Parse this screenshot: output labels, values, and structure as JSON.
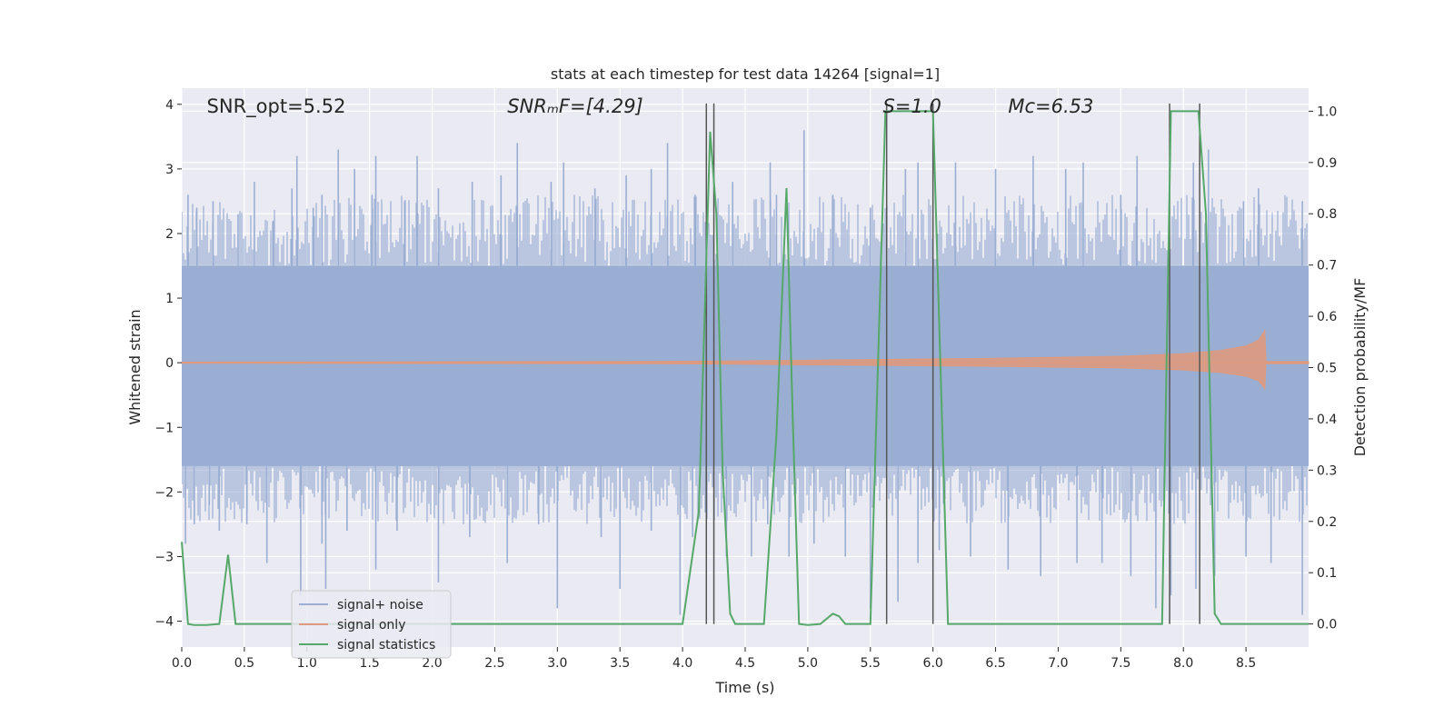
{
  "chart_data": {
    "type": "line",
    "title": "stats at each timestep for test data 14264 [signal=1]",
    "xlabel": "Time (s)",
    "ylabel": "Whitened strain",
    "y2label": "Detection probability/MF",
    "xlim": [
      0,
      9.0
    ],
    "ylim": [
      -4.4,
      4.25
    ],
    "y2lim": [
      -0.045,
      1.045
    ],
    "xticks": [
      0.0,
      0.5,
      1.0,
      1.5,
      2.0,
      2.5,
      3.0,
      3.5,
      4.0,
      4.5,
      5.0,
      5.5,
      6.0,
      6.5,
      7.0,
      7.5,
      8.0,
      8.5
    ],
    "xtick_labels": [
      "0.0",
      "0.5",
      "1.0",
      "1.5",
      "2.0",
      "2.5",
      "3.0",
      "3.5",
      "4.0",
      "4.5",
      "5.0",
      "5.5",
      "6.0",
      "6.5",
      "7.0",
      "7.5",
      "8.0",
      "8.5"
    ],
    "yticks": [
      -4,
      -3,
      -2,
      -1,
      0,
      1,
      2,
      3,
      4
    ],
    "ytick_labels": [
      "−4",
      "−3",
      "−2",
      "−1",
      "0",
      "1",
      "2",
      "3",
      "4"
    ],
    "y2ticks": [
      0.0,
      0.1,
      0.2,
      0.3,
      0.4,
      0.5,
      0.6,
      0.7,
      0.8,
      0.9,
      1.0
    ],
    "y2tick_labels": [
      "0.0",
      "0.1",
      "0.2",
      "0.3",
      "0.4",
      "0.5",
      "0.6",
      "0.7",
      "0.8",
      "0.9",
      "1.0"
    ],
    "grid": true,
    "legend_position": "lower-left",
    "annotations": [
      {
        "label": "SNR_opt=5.52",
        "x": 0.2
      },
      {
        "label": "SNRₘF=[4.29]",
        "x": 2.6
      },
      {
        "label": "S=1.0",
        "x": 5.6
      },
      {
        "label": "Mᴄ=6.53",
        "x": 6.6
      }
    ],
    "series": [
      {
        "name": "signal+ noise",
        "color": "#9aaed3",
        "kind": "noise",
        "envelope": {
          "low": -1.6,
          "high": 1.5
        },
        "spikes_up": [
          [
            0.05,
            2.6
          ],
          [
            0.12,
            2.4
          ],
          [
            0.25,
            2.5
          ],
          [
            0.45,
            2.3
          ],
          [
            0.58,
            2.8
          ],
          [
            0.73,
            2.2
          ],
          [
            0.88,
            2.7
          ],
          [
            0.92,
            3.2
          ],
          [
            1.05,
            2.4
          ],
          [
            1.12,
            2.6
          ],
          [
            1.25,
            3.3
          ],
          [
            1.38,
            3.0
          ],
          [
            1.52,
            2.6
          ],
          [
            1.55,
            3.2
          ],
          [
            1.78,
            2.5
          ],
          [
            1.88,
            3.2
          ],
          [
            2.05,
            2.7
          ],
          [
            2.32,
            2.8
          ],
          [
            2.55,
            2.9
          ],
          [
            2.68,
            3.4
          ],
          [
            2.95,
            2.8
          ],
          [
            3.05,
            3.1
          ],
          [
            3.3,
            2.7
          ],
          [
            3.55,
            2.9
          ],
          [
            3.75,
            3.0
          ],
          [
            3.88,
            3.4
          ],
          [
            4.1,
            2.6
          ],
          [
            4.4,
            2.8
          ],
          [
            4.7,
            3.1
          ],
          [
            4.75,
            2.6
          ],
          [
            4.97,
            3.6
          ],
          [
            5.2,
            2.6
          ],
          [
            5.5,
            2.4
          ],
          [
            5.78,
            3.0
          ],
          [
            5.88,
            3.1
          ],
          [
            6.18,
            3.1
          ],
          [
            6.5,
            3.0
          ],
          [
            6.8,
            3.2
          ],
          [
            7.06,
            3.0
          ],
          [
            7.2,
            3.1
          ],
          [
            7.5,
            2.6
          ],
          [
            7.63,
            3.2
          ],
          [
            8.08,
            3.1
          ],
          [
            8.2,
            3.3
          ],
          [
            8.48,
            2.5
          ],
          [
            8.6,
            2.7
          ],
          [
            8.95,
            2.5
          ]
        ],
        "spikes_down": [
          [
            0.03,
            -2.8
          ],
          [
            0.1,
            -2.5
          ],
          [
            0.22,
            -2.2
          ],
          [
            0.3,
            -2.6
          ],
          [
            0.52,
            -2.5
          ],
          [
            0.68,
            -3.1
          ],
          [
            0.95,
            -3.6
          ],
          [
            1.12,
            -2.8
          ],
          [
            1.15,
            -3.5
          ],
          [
            1.32,
            -2.6
          ],
          [
            1.55,
            -3.2
          ],
          [
            1.72,
            -2.6
          ],
          [
            2.05,
            -3.4
          ],
          [
            2.3,
            -2.7
          ],
          [
            2.6,
            -3.1
          ],
          [
            2.85,
            -2.5
          ],
          [
            3.0,
            -3.8
          ],
          [
            3.35,
            -2.7
          ],
          [
            3.5,
            -3.5
          ],
          [
            3.75,
            -2.6
          ],
          [
            3.98,
            -3.9
          ],
          [
            4.08,
            -2.7
          ],
          [
            4.35,
            -3.0
          ],
          [
            4.55,
            -3.0
          ],
          [
            4.68,
            -2.5
          ],
          [
            4.85,
            -3.0
          ],
          [
            5.05,
            -2.8
          ],
          [
            5.3,
            -3.0
          ],
          [
            5.5,
            -3.8
          ],
          [
            5.72,
            -3.7
          ],
          [
            5.88,
            -3.1
          ],
          [
            6.05,
            -2.9
          ],
          [
            6.3,
            -3.0
          ],
          [
            6.6,
            -3.2
          ],
          [
            6.86,
            -3.3
          ],
          [
            7.15,
            -3.1
          ],
          [
            7.35,
            -3.1
          ],
          [
            7.58,
            -3.3
          ],
          [
            7.78,
            -3.8
          ],
          [
            7.9,
            -3.6
          ],
          [
            8.1,
            -3.5
          ],
          [
            8.25,
            -3.3
          ],
          [
            8.5,
            -3.0
          ],
          [
            8.7,
            -3.1
          ],
          [
            8.95,
            -3.9
          ]
        ]
      },
      {
        "name": "signal only",
        "color": "#dd9a7f",
        "kind": "chirp",
        "x": [
          0.0,
          1.0,
          2.0,
          3.0,
          4.0,
          4.5,
          5.0,
          5.5,
          6.0,
          6.5,
          7.0,
          7.5,
          8.0,
          8.3,
          8.5,
          8.6,
          8.65,
          8.66,
          9.0
        ],
        "amplitude": [
          0.01,
          0.012,
          0.015,
          0.018,
          0.022,
          0.03,
          0.04,
          0.05,
          0.06,
          0.07,
          0.085,
          0.1,
          0.14,
          0.19,
          0.26,
          0.35,
          0.5,
          0.02,
          0.02
        ]
      },
      {
        "name": "signal statistics",
        "color": "#55a868",
        "kind": "line",
        "axis": "y2",
        "x": [
          0.0,
          0.05,
          0.1,
          0.2,
          0.3,
          0.37,
          0.43,
          0.5,
          1.0,
          2.0,
          3.0,
          4.0,
          4.13,
          4.22,
          4.27,
          4.32,
          4.38,
          4.42,
          4.5,
          4.6,
          4.65,
          4.75,
          4.83,
          4.88,
          4.93,
          5.0,
          5.1,
          5.2,
          5.25,
          5.3,
          5.4,
          5.5,
          5.62,
          5.68,
          6.0,
          6.12,
          6.5,
          7.0,
          7.5,
          7.83,
          7.9,
          7.95,
          8.12,
          8.18,
          8.25,
          8.3,
          8.5,
          9.0
        ],
        "values": [
          0.16,
          0.0,
          -0.002,
          -0.002,
          0.0,
          0.135,
          0.0,
          0.0,
          0.0,
          0.0,
          0.0,
          0.0,
          0.22,
          0.96,
          0.8,
          0.3,
          0.02,
          0.0,
          0.0,
          0.0,
          0.0,
          0.37,
          0.85,
          0.4,
          0.0,
          -0.002,
          0.0,
          0.02,
          0.015,
          0.0,
          0.0,
          0.0,
          1.0,
          1.0,
          1.0,
          0.0,
          0.0,
          0.0,
          0.0,
          0.0,
          1.0,
          1.0,
          1.0,
          0.8,
          0.02,
          0.0,
          0.0,
          0.0
        ]
      }
    ],
    "vlines": [
      4.19,
      4.25,
      5.63,
      6.0,
      7.89,
      8.13
    ]
  }
}
